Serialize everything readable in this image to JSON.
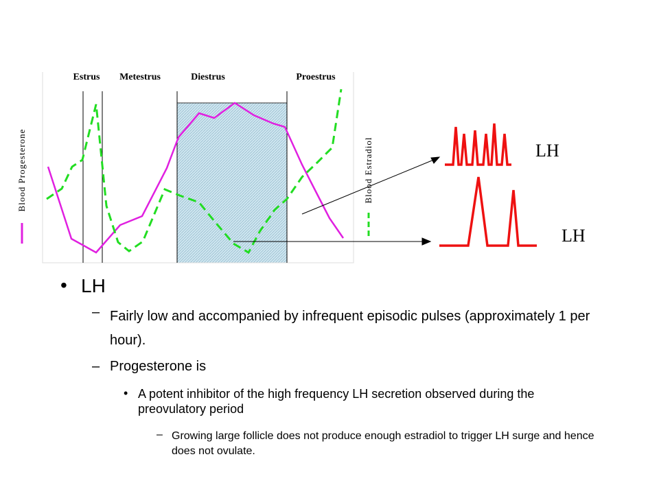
{
  "diagram": {
    "phases": [
      "Estrus",
      "Metestrus",
      "Diestrus",
      "Proestrus"
    ],
    "left_axis_label": "Blood Progesterone",
    "right_axis_label": "Blood Estradiol",
    "pulse_labels": [
      "LH",
      "LH"
    ]
  },
  "bullets": {
    "heading": "LH",
    "items": [
      {
        "text": "Fairly low and accompanied by infrequent episodic pulses (approximately 1 per hour)."
      },
      {
        "text": "Progesterone is",
        "sub": {
          "text": "A potent inhibitor of the high frequency LH secretion observed during the preovulatory period",
          "sub": "Growing large follicle does not produce enough estradiol to trigger LH surge and hence does not ovulate."
        }
      }
    ]
  }
}
